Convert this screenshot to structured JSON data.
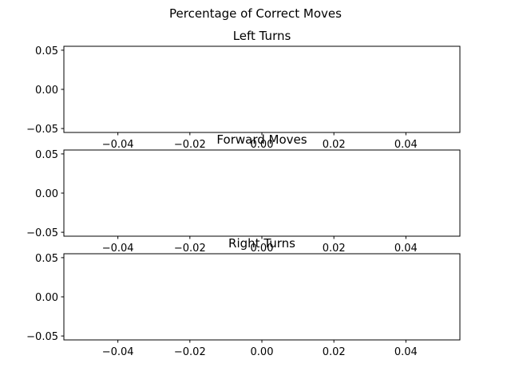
{
  "figure": {
    "suptitle": "Percentage of Correct Moves"
  },
  "chart_data": [
    {
      "type": "line",
      "title": "Left Turns",
      "xlabel": "",
      "ylabel": "",
      "xlim": [
        -0.055,
        0.055
      ],
      "ylim": [
        -0.055,
        0.055
      ],
      "xticks": [
        -0.04,
        -0.02,
        0.0,
        0.02,
        0.04
      ],
      "xtick_labels": [
        "−0.04",
        "−0.02",
        "0.00",
        "0.02",
        "0.04"
      ],
      "yticks": [
        -0.05,
        0.0,
        0.05
      ],
      "ytick_labels": [
        "−0.05",
        "0.00",
        "0.05"
      ],
      "grid": false,
      "series": []
    },
    {
      "type": "line",
      "title": "Forward Moves",
      "xlabel": "",
      "ylabel": "",
      "xlim": [
        -0.055,
        0.055
      ],
      "ylim": [
        -0.055,
        0.055
      ],
      "xticks": [
        -0.04,
        -0.02,
        0.0,
        0.02,
        0.04
      ],
      "xtick_labels": [
        "−0.04",
        "−0.02",
        "0.00",
        "0.02",
        "0.04"
      ],
      "yticks": [
        -0.05,
        0.0,
        0.05
      ],
      "ytick_labels": [
        "−0.05",
        "0.00",
        "0.05"
      ],
      "grid": false,
      "series": []
    },
    {
      "type": "line",
      "title": "Right Turns",
      "xlabel": "",
      "ylabel": "",
      "xlim": [
        -0.055,
        0.055
      ],
      "ylim": [
        -0.055,
        0.055
      ],
      "xticks": [
        -0.04,
        -0.02,
        0.0,
        0.02,
        0.04
      ],
      "xtick_labels": [
        "−0.04",
        "−0.02",
        "0.00",
        "0.02",
        "0.04"
      ],
      "yticks": [
        -0.05,
        0.0,
        0.05
      ],
      "ytick_labels": [
        "−0.05",
        "0.00",
        "0.05"
      ],
      "grid": false,
      "series": []
    }
  ]
}
